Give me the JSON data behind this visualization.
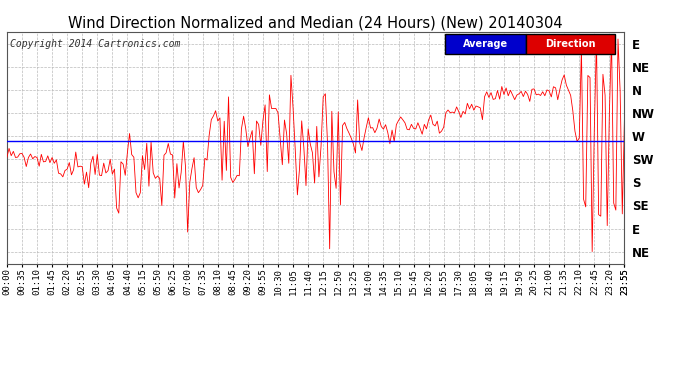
{
  "title": "Wind Direction Normalized and Median (24 Hours) (New) 20140304",
  "copyright": "Copyright 2014 Cartronics.com",
  "y_labels_right": [
    "E",
    "NE",
    "N",
    "NW",
    "W",
    "SW",
    "S",
    "SE",
    "E",
    "NE"
  ],
  "y_ticks": [
    360,
    337.5,
    315,
    292.5,
    270,
    247.5,
    225,
    202.5,
    180,
    157.5
  ],
  "y_min": 145,
  "y_max": 372,
  "median_value": 265,
  "bg_color": "#ffffff",
  "grid_color": "#bbbbbb",
  "line_color": "#ff0000",
  "median_color": "#0000ff",
  "legend_avg_bg": "#0000cc",
  "legend_dir_bg": "#dd0000",
  "title_fontsize": 10.5,
  "copyright_fontsize": 7,
  "tick_fontsize": 6.5,
  "ytick_fontsize": 8.5
}
